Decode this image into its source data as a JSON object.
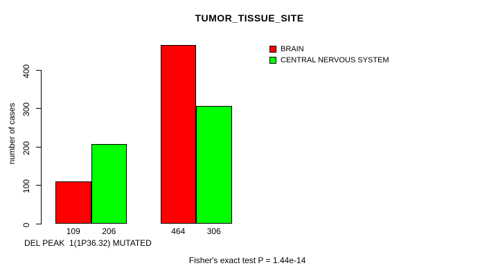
{
  "chart_data": {
    "type": "bar",
    "title": "TUMOR_TISSUE_SITE",
    "ylabel": "number of cases",
    "xlabel": "DEL PEAK  1(1P36.32) MUTATED",
    "annotation": "Fisher's exact test P = 1.44e-14",
    "categories": [
      "",
      ""
    ],
    "series": [
      {
        "name": "BRAIN",
        "color": "#ff0000",
        "values": [
          109,
          464
        ]
      },
      {
        "name": "CENTRAL NERVOUS SYSTEM",
        "color": "#00ff00",
        "values": [
          206,
          306
        ]
      }
    ],
    "yticks": [
      0,
      100,
      200,
      300,
      400
    ],
    "ylim": [
      0,
      464
    ],
    "grid": false,
    "legend_position": "top-right",
    "bar_border_color": "#000000",
    "background_color": "#ffffff"
  }
}
